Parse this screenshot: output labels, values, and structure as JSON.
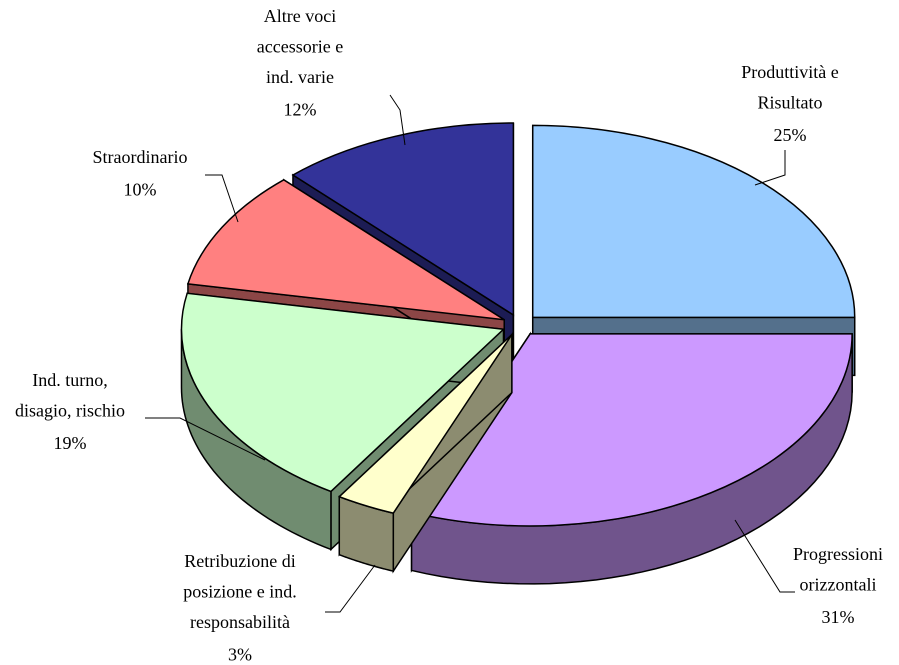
{
  "chart_data": {
    "type": "pie3d",
    "categories": [
      [
        "Produttività e",
        "Risultato"
      ],
      [
        "Progressioni",
        "orizzontali"
      ],
      [
        "Retribuzione di",
        "posizione e ind.",
        "responsabilità"
      ],
      [
        "Ind. turno,",
        "disagio, rischio"
      ],
      [
        "Straordinario"
      ],
      [
        "Altre voci",
        "accessorie e",
        "ind. varie"
      ]
    ],
    "values": [
      25,
      31,
      3,
      19,
      10,
      12
    ],
    "value_labels": [
      "25%",
      "31%",
      "3%",
      "19%",
      "10%",
      "12%"
    ],
    "colors": [
      "#99ccff",
      "#cc99ff",
      "#ffffcc",
      "#ccffcc",
      "#ff8080",
      "#333399"
    ]
  }
}
